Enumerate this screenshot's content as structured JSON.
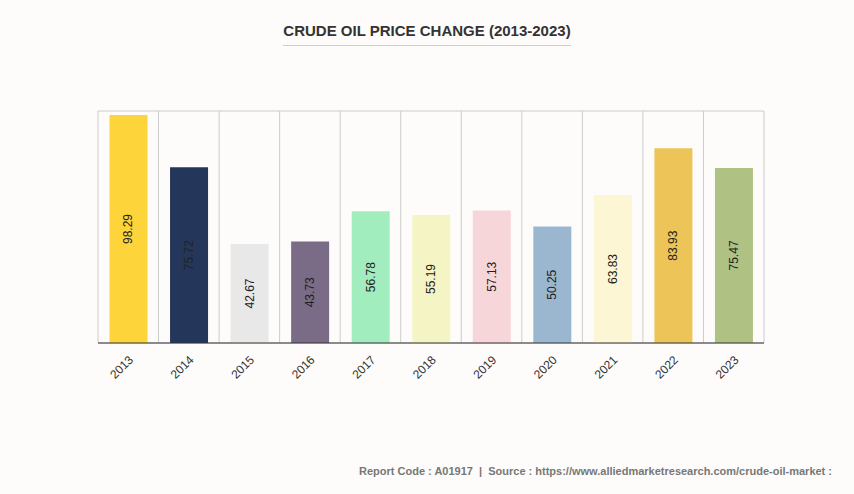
{
  "chart_data": {
    "type": "bar",
    "title": "CRUDE OIL PRICE CHANGE (2013-2023)",
    "annotations": [
      "Report Code : A01917  |  Source : https://www.alliedmarketresearch.com/crude-oil-market :"
    ],
    "categories": [
      "2013",
      "2014",
      "2015",
      "2016",
      "2017",
      "2018",
      "2019",
      "2020",
      "2021",
      "2022",
      "2023"
    ],
    "values": [
      98.29,
      75.72,
      42.67,
      43.73,
      56.78,
      55.19,
      57.13,
      50.25,
      63.83,
      83.93,
      75.47
    ],
    "colors": [
      "#fdd43a",
      "#24375a",
      "#e8e8e8",
      "#7a6b87",
      "#a2edbe",
      "#f5f4c4",
      "#f7d6d9",
      "#9bb7cf",
      "#fdf6d5",
      "#ecc457",
      "#b0c283"
    ],
    "ylim": [
      0,
      100
    ],
    "yticks": [
      0,
      20,
      40,
      60,
      80,
      100
    ],
    "grid": true,
    "data_labels": true,
    "tick_labels": "x"
  }
}
